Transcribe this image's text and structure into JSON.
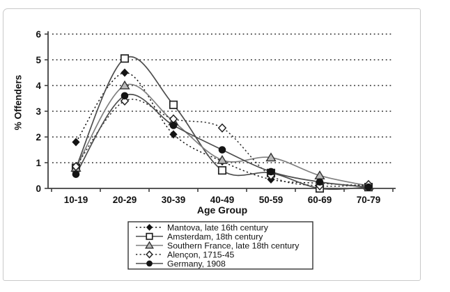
{
  "chart_data": {
    "type": "line",
    "title": "",
    "xlabel": "Age Group",
    "ylabel": "% Offenders",
    "categories": [
      "10-19",
      "20-29",
      "30-39",
      "40-49",
      "50-59",
      "60-69",
      "70-79"
    ],
    "ylim": [
      0,
      6
    ],
    "yticks": [
      0,
      1,
      2,
      3,
      4,
      5,
      6
    ],
    "grid": "horizontal dotted lines at each y unit",
    "legend_position": "bottom, boxed, outside plot",
    "line_smoothing": "smoothed (spline) lines",
    "series": [
      {
        "name": "Mantova, late 16th century",
        "marker": "diamond-filled",
        "line": "dotted",
        "color": "#141414",
        "values": [
          1.8,
          4.5,
          2.1,
          1.05,
          0.35,
          0.2,
          0.1
        ]
      },
      {
        "name": "Amsterdam, 18th century",
        "marker": "square-open",
        "line": "solid",
        "color": "#4d4d4d",
        "values": [
          0.8,
          5.05,
          3.25,
          0.7,
          0.6,
          0.0,
          0.05
        ]
      },
      {
        "name": "Southern France, late 18th century",
        "marker": "triangle-gray",
        "line": "solid",
        "color": "#808080",
        "values": [
          0.8,
          4.0,
          2.6,
          1.1,
          1.2,
          0.5,
          0.1
        ]
      },
      {
        "name": "Alençon, 1715-45",
        "marker": "diamond-open",
        "line": "dotted",
        "color": "#2b2b2b",
        "values": [
          0.85,
          3.4,
          2.7,
          2.35,
          0.5,
          0.1,
          0.15
        ]
      },
      {
        "name": "Germany, 1908",
        "marker": "circle-filled",
        "line": "solid",
        "color": "#4d4d4d",
        "values": [
          0.55,
          3.6,
          2.45,
          1.5,
          0.65,
          0.25,
          0.05
        ]
      }
    ]
  }
}
